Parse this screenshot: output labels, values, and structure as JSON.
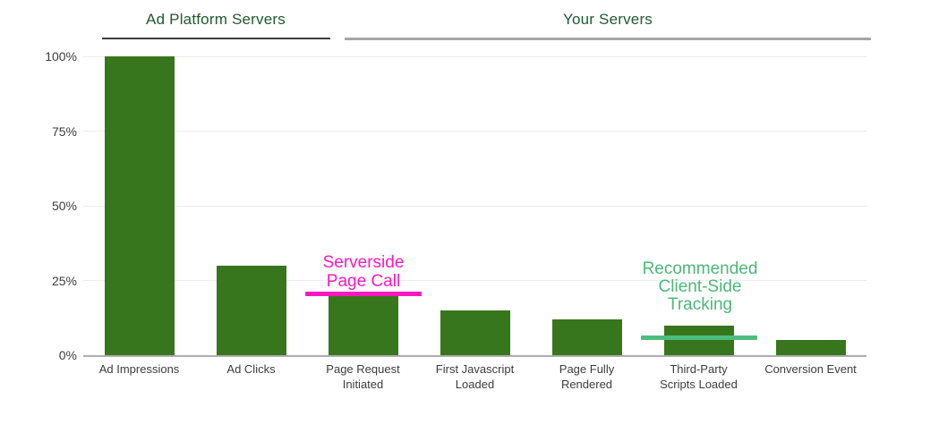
{
  "headers": {
    "ad_platform": "Ad Platform Servers",
    "your_servers": "Your Servers"
  },
  "colors": {
    "bar": "#38761d",
    "header_text": "#1e5a2d",
    "axis_text": "#3c3c3c",
    "gridline": "#ececec",
    "baseline": "#adadad",
    "ad_platform_underline": "#3d3d3d",
    "your_servers_underline": "#a6a6a6",
    "serverside_annotation": "#fb18c0",
    "clientside_annotation_text": "#4cb876",
    "clientside_annotation_line": "#4dbd7f"
  },
  "annotations": {
    "serverside": {
      "lines": [
        "Serverside",
        "Page Call"
      ],
      "line_value_pct": 20.5,
      "anchor_category_index": 2
    },
    "client_side": {
      "lines": [
        "Recommended",
        "Client-Side",
        "Tracking"
      ],
      "line_value_pct": 5.8,
      "anchor_category_index": 5
    }
  },
  "chart_data": {
    "type": "bar",
    "title": "",
    "xlabel": "",
    "ylabel": "",
    "ylim": [
      0,
      100
    ],
    "grid": true,
    "categories": [
      "Ad Impressions",
      "Ad Clicks",
      "Page Request Initiated",
      "First Javascript Loaded",
      "Page Fully Rendered",
      "Third-Party Scripts Loaded",
      "Conversion Event"
    ],
    "category_label_lines": [
      [
        "Ad Impressions"
      ],
      [
        "Ad Clicks"
      ],
      [
        "Page Request",
        "Initiated"
      ],
      [
        "First Javascript",
        "Loaded"
      ],
      [
        "Page Fully",
        "Rendered"
      ],
      [
        "Third-Party",
        "Scripts Loaded"
      ],
      [
        "Conversion Event"
      ]
    ],
    "values": [
      100,
      30,
      20,
      15,
      12,
      10,
      5
    ],
    "yticks": [
      {
        "pct": 0,
        "label": "0%"
      },
      {
        "pct": 25,
        "label": "25%"
      },
      {
        "pct": 50,
        "label": "50%"
      },
      {
        "pct": 75,
        "label": "75%"
      },
      {
        "pct": 100,
        "label": "100%"
      }
    ],
    "section_groups": [
      {
        "name": "Ad Platform Servers",
        "category_indices": [
          0,
          1
        ]
      },
      {
        "name": "Your Servers",
        "category_indices": [
          2,
          3,
          4,
          5,
          6
        ]
      }
    ]
  }
}
